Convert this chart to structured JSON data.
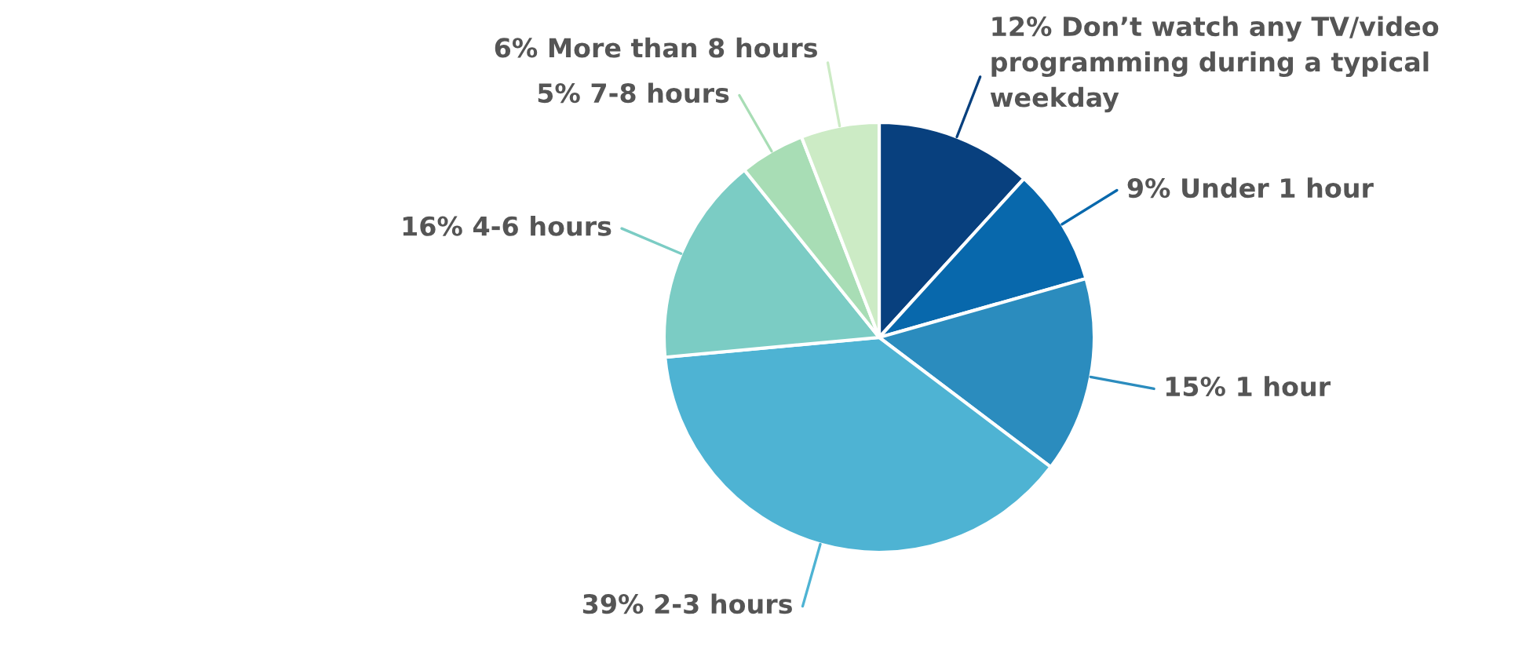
{
  "chart_data": {
    "type": "pie",
    "categories": [
      "Don’t watch any TV/video\nprogramming during a typical\nweekday",
      "Under 1 hour",
      "1 hour",
      "2-3 hours",
      "4-6 hours",
      "7-8 hours",
      "More than 8 hours"
    ],
    "values": [
      12,
      9,
      15,
      39,
      16,
      5,
      6
    ],
    "value_labels": [
      "12%",
      "9%",
      "15%",
      "39%",
      "16%",
      "5%",
      "6%"
    ],
    "colors": [
      "#08407e",
      "#0868ac",
      "#2b8cbe",
      "#4eb3d3",
      "#7bccc4",
      "#a8ddb5",
      "#ccebc5"
    ],
    "legend": false
  }
}
